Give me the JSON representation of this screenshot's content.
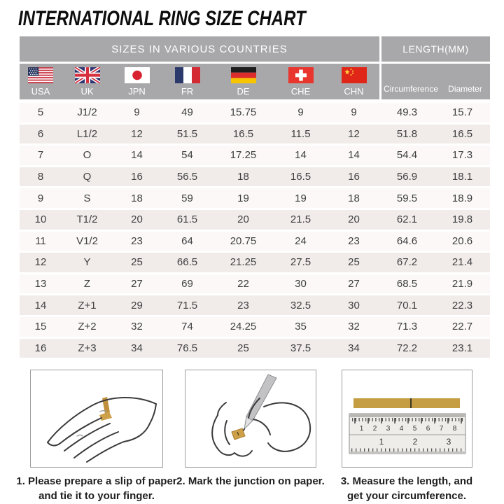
{
  "title": "INTERNATIONAL RING SIZE CHART",
  "table": {
    "group_left": "SIZES IN VARIOUS COUNTRIES",
    "group_right": "LENGTH(MM)",
    "columns": [
      {
        "code": "USA",
        "flag": "usa-flag-icon"
      },
      {
        "code": "UK",
        "flag": "uk-flag-icon"
      },
      {
        "code": "JPN",
        "flag": "japan-flag-icon"
      },
      {
        "code": "FR",
        "flag": "france-flag-icon"
      },
      {
        "code": "DE",
        "flag": "germany-flag-icon"
      },
      {
        "code": "CHE",
        "flag": "switzerland-flag-icon"
      },
      {
        "code": "CHN",
        "flag": "china-flag-icon"
      }
    ],
    "length_columns": [
      "Circumference",
      "Diameter"
    ],
    "rows": [
      [
        "5",
        "J1/2",
        "9",
        "49",
        "15.75",
        "9",
        "9",
        "49.3",
        "15.7"
      ],
      [
        "6",
        "L1/2",
        "12",
        "51.5",
        "16.5",
        "11.5",
        "12",
        "51.8",
        "16.5"
      ],
      [
        "7",
        "O",
        "14",
        "54",
        "17.25",
        "14",
        "14",
        "54.4",
        "17.3"
      ],
      [
        "8",
        "Q",
        "16",
        "56.5",
        "18",
        "16.5",
        "16",
        "56.9",
        "18.1"
      ],
      [
        "9",
        "S",
        "18",
        "59",
        "19",
        "19",
        "18",
        "59.5",
        "18.9"
      ],
      [
        "10",
        "T1/2",
        "20",
        "61.5",
        "20",
        "21.5",
        "20",
        "62.1",
        "19.8"
      ],
      [
        "11",
        "V1/2",
        "23",
        "64",
        "20.75",
        "24",
        "23",
        "64.6",
        "20.6"
      ],
      [
        "12",
        "Y",
        "25",
        "66.5",
        "21.25",
        "27.5",
        "25",
        "67.2",
        "21.4"
      ],
      [
        "13",
        "Z",
        "27",
        "69",
        "22",
        "30",
        "27",
        "68.5",
        "21.9"
      ],
      [
        "14",
        "Z+1",
        "29",
        "71.5",
        "23",
        "32.5",
        "30",
        "70.1",
        "22.3"
      ],
      [
        "15",
        "Z+2",
        "32",
        "74",
        "24.25",
        "35",
        "32",
        "71.3",
        "22.7"
      ],
      [
        "16",
        "Z+3",
        "34",
        "76.5",
        "25",
        "37.5",
        "34",
        "72.2",
        "23.1"
      ]
    ]
  },
  "chart_data": {
    "type": "table",
    "title": "INTERNATIONAL RING SIZE CHART",
    "columns": [
      "USA",
      "UK",
      "JPN",
      "FR",
      "DE",
      "CHE",
      "CHN",
      "Circumference (mm)",
      "Diameter (mm)"
    ],
    "rows": [
      [
        "5",
        "J1/2",
        "9",
        "49",
        "15.75",
        "9",
        "9",
        "49.3",
        "15.7"
      ],
      [
        "6",
        "L1/2",
        "12",
        "51.5",
        "16.5",
        "11.5",
        "12",
        "51.8",
        "16.5"
      ],
      [
        "7",
        "O",
        "14",
        "54",
        "17.25",
        "14",
        "14",
        "54.4",
        "17.3"
      ],
      [
        "8",
        "Q",
        "16",
        "56.5",
        "18",
        "16.5",
        "16",
        "56.9",
        "18.1"
      ],
      [
        "9",
        "S",
        "18",
        "59",
        "19",
        "19",
        "18",
        "59.5",
        "18.9"
      ],
      [
        "10",
        "T1/2",
        "20",
        "61.5",
        "20",
        "21.5",
        "20",
        "62.1",
        "19.8"
      ],
      [
        "11",
        "V1/2",
        "23",
        "64",
        "20.75",
        "24",
        "23",
        "64.6",
        "20.6"
      ],
      [
        "12",
        "Y",
        "25",
        "66.5",
        "21.25",
        "27.5",
        "25",
        "67.2",
        "21.4"
      ],
      [
        "13",
        "Z",
        "27",
        "69",
        "22",
        "30",
        "27",
        "68.5",
        "21.9"
      ],
      [
        "14",
        "Z+1",
        "29",
        "71.5",
        "23",
        "32.5",
        "30",
        "70.1",
        "22.3"
      ],
      [
        "15",
        "Z+2",
        "32",
        "74",
        "24.25",
        "35",
        "32",
        "71.3",
        "22.7"
      ],
      [
        "16",
        "Z+3",
        "34",
        "76.5",
        "25",
        "37.5",
        "34",
        "72.2",
        "23.1"
      ]
    ]
  },
  "instructions": [
    {
      "caption": "1. Please prepare a slip of paper\nand tie it to your finger.",
      "illustration": "hand-with-paper-strip"
    },
    {
      "caption": "2. Mark the junction on paper.",
      "illustration": "marking-junction-with-pen"
    },
    {
      "caption": "3. Measure the length, and\nget your circumference.",
      "illustration": "ruler-measuring-strip"
    }
  ],
  "ruler": {
    "cm_numbers": [
      "1",
      "2",
      "3",
      "4",
      "5",
      "6",
      "7",
      "8"
    ],
    "inch_numbers": [
      "1",
      "2",
      "3"
    ]
  },
  "colors": {
    "header_bg": "#a8a8aa",
    "header_text": "#ffffff",
    "row_light": "#fbf8f7",
    "row_dark": "#f1ecea",
    "body_text": "#3f3f41",
    "paper_gold": "#c59d43"
  }
}
